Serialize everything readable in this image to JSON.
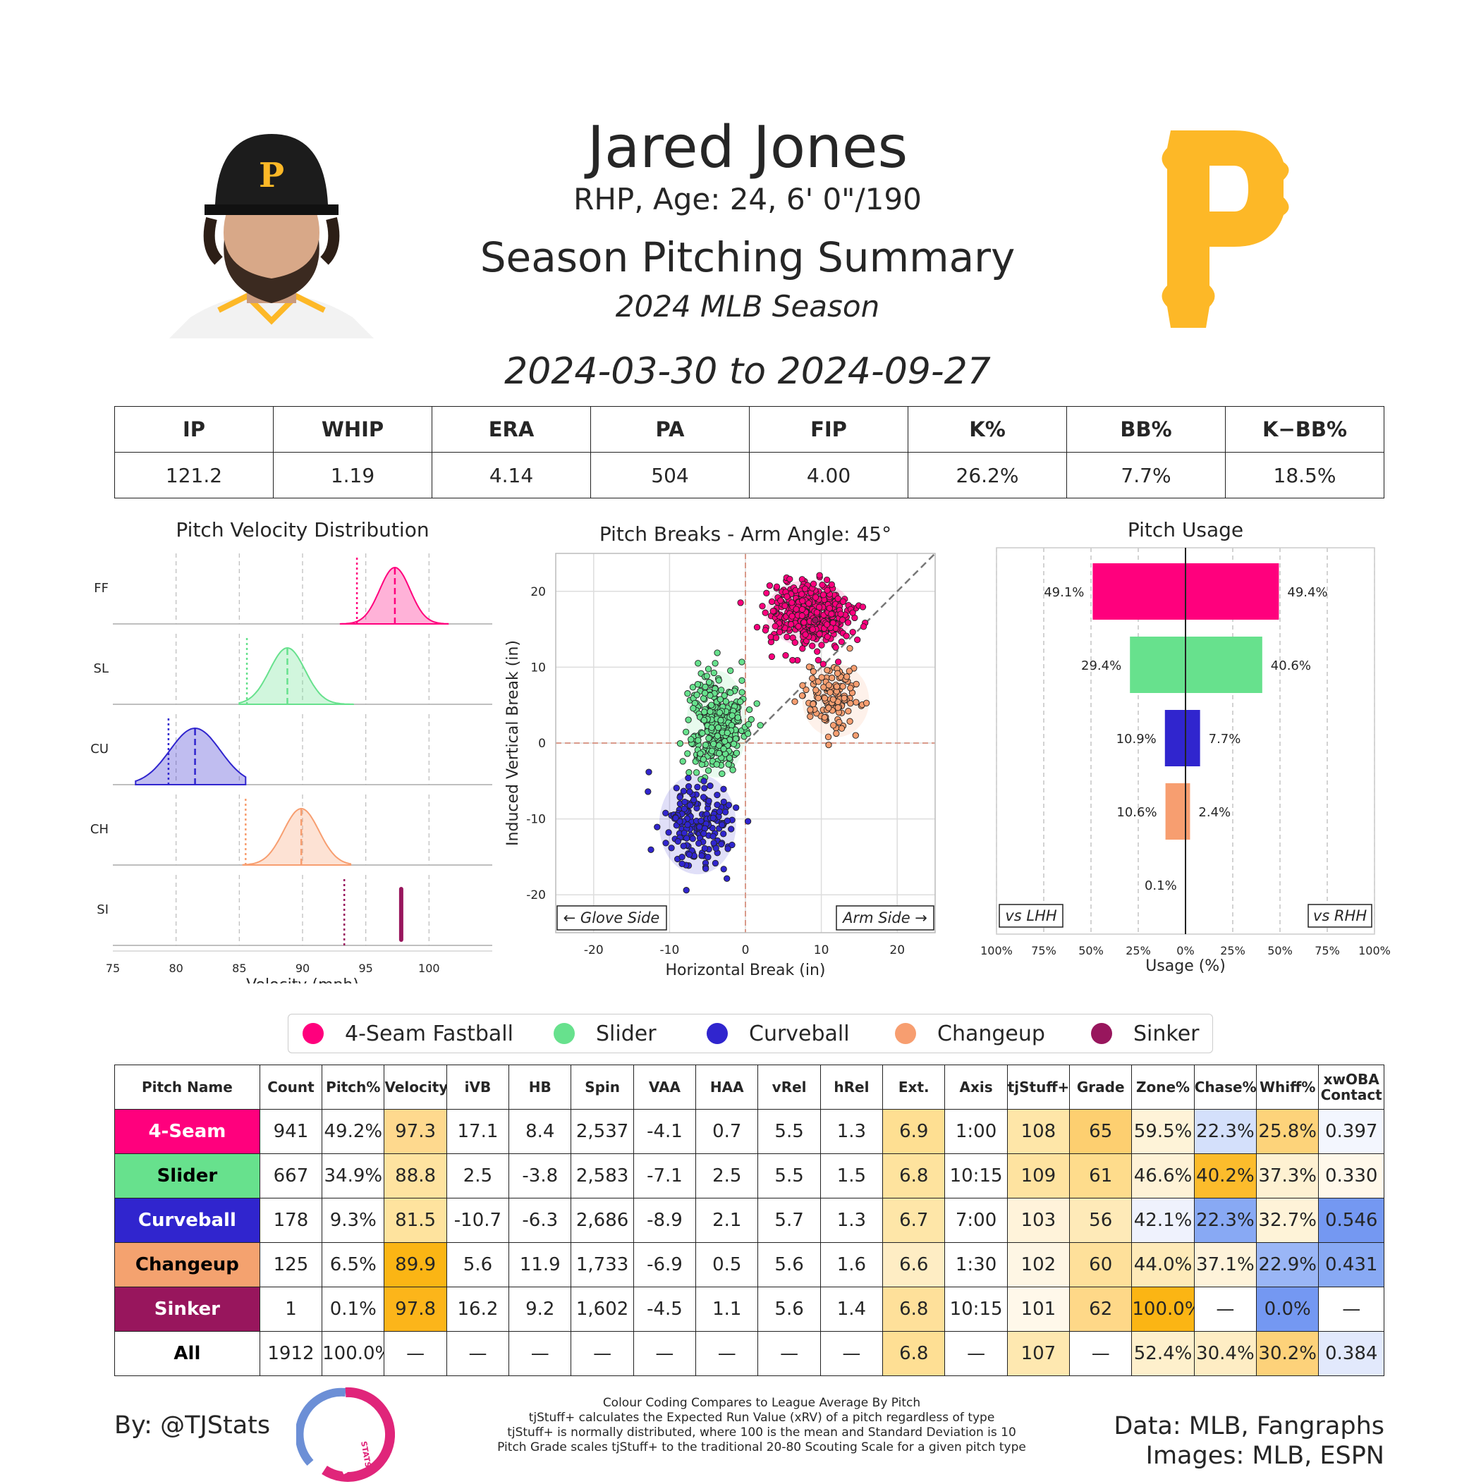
{
  "header": {
    "player_name": "Jared Jones",
    "player_info": "RHP, Age: 24, 6' 0\"/190",
    "summary_title": "Season Pitching Summary",
    "season_label": "2024 MLB Season",
    "date_range": "2024-03-30 to 2024-09-27"
  },
  "season_stats": {
    "headers": [
      "IP",
      "WHIP",
      "ERA",
      "PA",
      "FIP",
      "K%",
      "BB%",
      "K−BB%"
    ],
    "values": [
      "121.2",
      "1.19",
      "4.14",
      "504",
      "4.00",
      "26.2%",
      "7.7%",
      "18.5%"
    ]
  },
  "colors": {
    "ff": "#FF007D",
    "sl": "#67E18D",
    "cu": "#3025CE",
    "ch": "#F79E70",
    "si": "#98165D",
    "team_gold": "#FDB827"
  },
  "chart_data": [
    {
      "type": "area",
      "title": "Pitch Velocity Distribution",
      "xlabel": "Velocity (mph)",
      "xlim": [
        75,
        105
      ],
      "xticks": [
        75,
        80,
        85,
        90,
        95,
        100
      ],
      "rows": [
        {
          "label": "FF",
          "mean": 97.3,
          "sd": 1.2,
          "min": 93,
          "max": 101.5,
          "league_avg": 94.3,
          "color": "#FF007D"
        },
        {
          "label": "SL",
          "mean": 88.8,
          "sd": 1.4,
          "min": 85,
          "max": 94,
          "league_avg": 85.6,
          "color": "#67E18D"
        },
        {
          "label": "CU",
          "mean": 81.5,
          "sd": 2.0,
          "min": 76.8,
          "max": 85.5,
          "league_avg": 79.4,
          "color": "#3025CE"
        },
        {
          "label": "CH",
          "mean": 89.9,
          "sd": 1.4,
          "min": 85.3,
          "max": 93.8,
          "league_avg": 85.5,
          "color": "#F79E70"
        },
        {
          "label": "SI",
          "mean": 97.8,
          "sd": 0,
          "min": 97.8,
          "max": 97.8,
          "league_avg": 93.3,
          "color": "#98165D"
        }
      ]
    },
    {
      "type": "scatter",
      "title": "Pitch Breaks - Arm Angle: 45°",
      "xlabel": "Horizontal Break (in)",
      "ylabel": "Induced Vertical Break (in)",
      "xlim": [
        -25,
        25
      ],
      "ylim": [
        -25,
        25
      ],
      "xticks": [
        -20,
        -10,
        0,
        10,
        20
      ],
      "yticks": [
        -20,
        -10,
        0,
        10,
        20
      ],
      "glove_label": "← Glove Side",
      "arm_label": "Arm Side →",
      "clusters": [
        {
          "name": "4-Seam Fastball",
          "cx": 8.4,
          "cy": 17.1,
          "sx": 2.6,
          "sy": 2.0,
          "n": 470,
          "color": "#FF007D"
        },
        {
          "name": "Slider",
          "cx": -3.8,
          "cy": 2.5,
          "sx": 1.8,
          "sy": 3.2,
          "n": 330,
          "color": "#67E18D"
        },
        {
          "name": "Curveball",
          "cx": -6.3,
          "cy": -10.7,
          "sx": 2.3,
          "sy": 3.0,
          "n": 178,
          "color": "#3025CE"
        },
        {
          "name": "Changeup",
          "cx": 11.9,
          "cy": 5.6,
          "sx": 2.0,
          "sy": 2.2,
          "n": 125,
          "color": "#F79E70"
        },
        {
          "name": "Sinker",
          "cx": 9.2,
          "cy": 16.2,
          "sx": 0,
          "sy": 0,
          "n": 1,
          "color": "#98165D"
        }
      ]
    },
    {
      "type": "bar",
      "title": "Pitch Usage",
      "xlabel": "Usage (%)",
      "xlim": [
        -100,
        100
      ],
      "xticks": [
        "100%",
        "75%",
        "50%",
        "25%",
        "0%",
        "25%",
        "50%",
        "75%",
        "100%"
      ],
      "lhh_label": "vs LHH",
      "rhh_label": "vs RHH",
      "bars": [
        {
          "pitch": "FF",
          "lhh": 49.1,
          "rhh": 49.4,
          "lhh_label": "49.1%",
          "rhh_label": "49.4%",
          "color": "#FF007D"
        },
        {
          "pitch": "SL",
          "lhh": 29.4,
          "rhh": 40.6,
          "lhh_label": "29.4%",
          "rhh_label": "40.6%",
          "color": "#67E18D"
        },
        {
          "pitch": "CU",
          "lhh": 10.9,
          "rhh": 7.7,
          "lhh_label": "10.9%",
          "rhh_label": "7.7%",
          "color": "#3025CE"
        },
        {
          "pitch": "CH",
          "lhh": 10.6,
          "rhh": 2.4,
          "lhh_label": "10.6%",
          "rhh_label": "2.4%",
          "color": "#F79E70"
        },
        {
          "pitch": "SI",
          "lhh": 0.1,
          "rhh": 0,
          "lhh_label": "0.1%",
          "rhh_label": "",
          "color": "#98165D"
        }
      ]
    }
  ],
  "legend": [
    {
      "label": "4-Seam Fastball",
      "color": "#FF007D"
    },
    {
      "label": "Slider",
      "color": "#67E18D"
    },
    {
      "label": "Curveball",
      "color": "#3025CE"
    },
    {
      "label": "Changeup",
      "color": "#F79E70"
    },
    {
      "label": "Sinker",
      "color": "#98165D"
    }
  ],
  "pitch_table": {
    "headers": [
      "Pitch Name",
      "Count",
      "Pitch%",
      "Velocity",
      "iVB",
      "HB",
      "Spin",
      "VAA",
      "HAA",
      "vRel",
      "hRel",
      "Ext.",
      "Axis",
      "tjStuff+",
      "Grade",
      "Zone%",
      "Chase%",
      "Whiff%",
      "xwOBA Contact"
    ],
    "rows": [
      {
        "name": "4-Seam",
        "name_bg": "#FF007D",
        "name_fg": "#ffffff",
        "cells": [
          "941",
          "49.2%",
          "97.3",
          "17.1",
          "8.4",
          "2,537",
          "-4.1",
          "0.7",
          "5.5",
          "1.3",
          "6.9",
          "1:00",
          "108",
          "65",
          "59.5%",
          "22.3%",
          "25.8%",
          "0.397"
        ],
        "bgs": [
          "",
          "",
          "#FED98E",
          "",
          "",
          "",
          "",
          "",
          "",
          "",
          "#FEDF92",
          "",
          "#FEE6A8",
          "#FDCF70",
          "#FEF3D8",
          "#D4E0FB",
          "#FDD37A",
          "#F3F6FE"
        ]
      },
      {
        "name": "Slider",
        "name_bg": "#67E18D",
        "name_fg": "#000000",
        "cells": [
          "667",
          "34.9%",
          "88.8",
          "2.5",
          "-3.8",
          "2,583",
          "-7.1",
          "2.5",
          "5.5",
          "1.5",
          "6.8",
          "10:15",
          "109",
          "61",
          "46.6%",
          "40.2%",
          "37.3%",
          "0.330"
        ],
        "bgs": [
          "",
          "",
          "#FEE3A0",
          "",
          "",
          "",
          "",
          "",
          "",
          "",
          "#FEE39E",
          "",
          "#FEE3A0",
          "#FEDC8C",
          "#FEF2D6",
          "#FCBC2C",
          "#FEF1D2",
          "#FFF8EA"
        ]
      },
      {
        "name": "Curveball",
        "name_bg": "#3025CE",
        "name_fg": "#ffffff",
        "cells": [
          "178",
          "9.3%",
          "81.5",
          "-10.7",
          "-6.3",
          "2,686",
          "-8.9",
          "2.1",
          "5.7",
          "1.3",
          "6.7",
          "7:00",
          "103",
          "56",
          "42.1%",
          "22.3%",
          "32.7%",
          "0.546"
        ],
        "bgs": [
          "",
          "",
          "#FEE39E",
          "",
          "",
          "",
          "",
          "",
          "",
          "",
          "#FEE6A8",
          "",
          "#FFF3DA",
          "#FEEAB8",
          "#EFF2FD",
          "#88A9F4",
          "#FEF3D8",
          "#7498F2"
        ]
      },
      {
        "name": "Changeup",
        "name_bg": "#F4A26F",
        "name_fg": "#000000",
        "cells": [
          "125",
          "6.5%",
          "89.9",
          "5.6",
          "11.9",
          "1,733",
          "-6.9",
          "0.5",
          "5.6",
          "1.6",
          "6.6",
          "1:30",
          "102",
          "60",
          "44.0%",
          "37.1%",
          "22.9%",
          "0.431"
        ],
        "bgs": [
          "",
          "",
          "#FBB514",
          "",
          "",
          "",
          "",
          "",
          "",
          "",
          "#FEEDC4",
          "",
          "#FEF6E4",
          "#FEE09A",
          "#FEEAB8",
          "#FEF3DA",
          "#9AB6F6",
          "#88A9F4"
        ]
      },
      {
        "name": "Sinker",
        "name_bg": "#98165D",
        "name_fg": "#ffffff",
        "cells": [
          "1",
          "0.1%",
          "97.8",
          "16.2",
          "9.2",
          "1,602",
          "-4.5",
          "1.1",
          "5.6",
          "1.4",
          "6.8",
          "10:15",
          "101",
          "62",
          "100.0%",
          "—",
          "0.0%",
          "—"
        ],
        "bgs": [
          "",
          "",
          "#FCB51A",
          "",
          "",
          "",
          "",
          "",
          "",
          "",
          "#FEE09A",
          "",
          "#FFF8EA",
          "#FED888",
          "#FBB514",
          "",
          "#7498F2",
          ""
        ]
      },
      {
        "name": "All",
        "name_bg": "#ffffff",
        "name_fg": "#000000",
        "cells": [
          "1912",
          "100.0%",
          "—",
          "—",
          "—",
          "—",
          "—",
          "—",
          "—",
          "—",
          "6.8",
          "—",
          "107",
          "—",
          "52.4%",
          "30.4%",
          "30.2%",
          "0.384"
        ],
        "bgs": [
          "",
          "",
          "",
          "",
          "",
          "",
          "",
          "",
          "",
          "",
          "#FEDF94",
          "",
          "#FEE8B0",
          "",
          "#FEF0CC",
          "#FEEDC4",
          "#FDD27A",
          "#E2E9FC"
        ]
      }
    ]
  },
  "footer": {
    "by": "By: @TJStats",
    "source_line1": "Data: MLB, Fangraphs",
    "source_line2": "Images: MLB, ESPN",
    "notes": [
      "Colour Coding Compares to League Average By Pitch",
      "tjStuff+ calculates the Expected Run Value (xRV) of a pitch regardless of type",
      "tjStuff+ is normally distributed, where 100 is the mean and Standard Deviation is 10",
      "Pitch Grade scales tjStuff+ to the traditional 20-80 Scouting Scale for a given pitch type"
    ],
    "logo_text": "STATS"
  }
}
